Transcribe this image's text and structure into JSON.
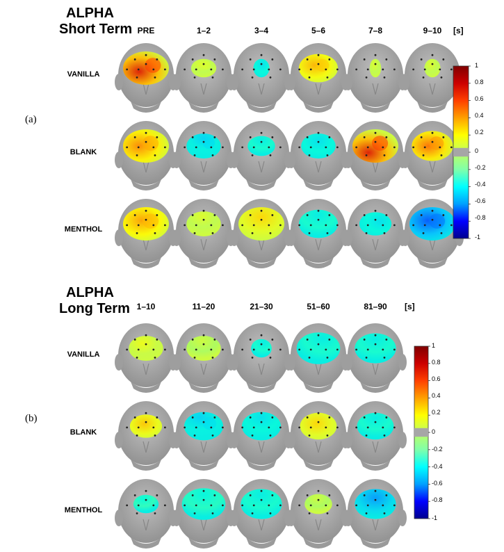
{
  "panels": [
    {
      "id": "a",
      "label": "(a)",
      "title_line1": "ALPHA",
      "title_line2": "Short Term",
      "unit": "[s]",
      "columns": [
        "PRE",
        "1–2",
        "3–4",
        "5–6",
        "7–8",
        "9–10"
      ],
      "rows": [
        "VANILLA",
        "BLANK",
        "MENTHOL"
      ],
      "maps": [
        [
          {
            "f": [
              [
                0.35,
                0.8
              ],
              [
                0.65,
                0.8
              ]
            ],
            "i": 0.85,
            "s": 1.0
          },
          {
            "f": [
              [
                0.4,
                0.5
              ],
              [
                0.6,
                0.5
              ]
            ],
            "i": 0.2,
            "s": 0.55
          },
          {
            "f": [
              [
                0.55,
                0.5
              ]
            ],
            "i": -0.2,
            "s": 0.35
          },
          {
            "f": [
              [
                0.4,
                0.6
              ],
              [
                0.6,
                0.6
              ]
            ],
            "i": 0.5,
            "s": 0.85
          },
          {
            "f": [
              [
                0.4,
                0.5
              ]
            ],
            "i": 0.2,
            "s": 0.25
          },
          {
            "f": [
              [
                0.4,
                0.5
              ]
            ],
            "i": 0.2,
            "s": 0.35
          }
        ],
        [
          {
            "f": [
              [
                0.35,
                0.7
              ],
              [
                0.6,
                0.7
              ]
            ],
            "i": 0.6,
            "s": 1.0
          },
          {
            "f": [
              [
                0.5,
                0.4
              ],
              [
                0.65,
                0.6
              ]
            ],
            "i": -0.25,
            "s": 0.75
          },
          {
            "f": [
              [
                0.5,
                0.4
              ]
            ],
            "i": -0.15,
            "s": 0.6
          },
          {
            "f": [
              [
                0.5,
                0.5
              ]
            ],
            "i": -0.2,
            "s": 0.75
          },
          {
            "f": [
              [
                0.35,
                0.9
              ],
              [
                0.6,
                0.7
              ]
            ],
            "i": 0.85,
            "s": 1.0
          },
          {
            "f": [
              [
                0.4,
                0.7
              ],
              [
                0.6,
                0.7
              ]
            ],
            "i": 0.65,
            "s": 0.9
          }
        ],
        [
          {
            "f": [
              [
                0.4,
                0.6
              ],
              [
                0.6,
                0.6
              ]
            ],
            "i": 0.55,
            "s": 1.0
          },
          {
            "f": [
              [
                0.45,
                0.4
              ]
            ],
            "i": 0.2,
            "s": 0.75
          },
          {
            "f": [
              [
                0.5,
                0.5
              ]
            ],
            "i": 0.4,
            "s": 1.0
          },
          {
            "f": [
              [
                0.5,
                0.4
              ]
            ],
            "i": -0.15,
            "s": 0.85
          },
          {
            "f": [
              [
                0.65,
                0.6
              ]
            ],
            "i": -0.2,
            "s": 0.7
          },
          {
            "f": [
              [
                0.4,
                0.6
              ],
              [
                0.6,
                0.5
              ]
            ],
            "i": -0.55,
            "s": 1.0
          }
        ]
      ]
    },
    {
      "id": "b",
      "label": "(b)",
      "title_line1": "ALPHA",
      "title_line2": "Long Term",
      "unit": "[s]",
      "columns": [
        "1–10",
        "11–20",
        "21–30",
        "51–60",
        "81–90"
      ],
      "rows": [
        "VANILLA",
        "BLANK",
        "MENTHOL"
      ],
      "maps": [
        [
          {
            "f": [
              [
                0.4,
                0.5
              ]
            ],
            "i": 0.25,
            "s": 0.75
          },
          {
            "f": [
              [
                0.45,
                0.4
              ]
            ],
            "i": 0.15,
            "s": 0.75
          },
          {
            "f": [
              [
                0.6,
                0.4
              ]
            ],
            "i": -0.15,
            "s": 0.45
          },
          {
            "f": [
              [
                0.6,
                0.4
              ]
            ],
            "i": -0.15,
            "s": 0.95
          },
          {
            "f": [
              [
                0.5,
                0.4
              ]
            ],
            "i": -0.15,
            "s": 0.9
          }
        ],
        [
          {
            "f": [
              [
                0.45,
                0.6
              ]
            ],
            "i": 0.45,
            "s": 0.7
          },
          {
            "f": [
              [
                0.4,
                0.4
              ],
              [
                0.65,
                0.4
              ]
            ],
            "i": -0.25,
            "s": 0.85
          },
          {
            "f": [
              [
                0.5,
                0.4
              ]
            ],
            "i": -0.2,
            "s": 0.85
          },
          {
            "f": [
              [
                0.45,
                0.6
              ]
            ],
            "i": 0.4,
            "s": 0.8
          },
          {
            "f": [
              [
                0.5,
                0.4
              ]
            ],
            "i": -0.15,
            "s": 0.8
          }
        ],
        [
          {
            "f": [
              [
                0.4,
                0.4
              ]
            ],
            "i": -0.1,
            "s": 0.55
          },
          {
            "f": [
              [
                0.5,
                0.4
              ]
            ],
            "i": -0.12,
            "s": 0.95
          },
          {
            "f": [
              [
                0.5,
                0.4
              ]
            ],
            "i": -0.15,
            "s": 0.9
          },
          {
            "f": [
              [
                0.45,
                0.4
              ]
            ],
            "i": 0.15,
            "s": 0.6
          },
          {
            "f": [
              [
                0.5,
                0.5
              ]
            ],
            "i": -0.4,
            "s": 0.9
          }
        ]
      ]
    }
  ],
  "colorbar": {
    "ticks": [
      "1",
      "0.8",
      "0.6",
      "0.4",
      "0.2",
      "0",
      "-0.2",
      "-0.4",
      "-0.6",
      "-0.8",
      "-1"
    ],
    "colors": [
      "#00008f",
      "#0000ff",
      "#00a0ff",
      "#00ffff",
      "#80ffaa",
      "#c0ff60",
      "#ffff00",
      "#ffa000",
      "#ff4000",
      "#cc0000",
      "#800000"
    ],
    "gap_color": "#a6a6a6"
  }
}
